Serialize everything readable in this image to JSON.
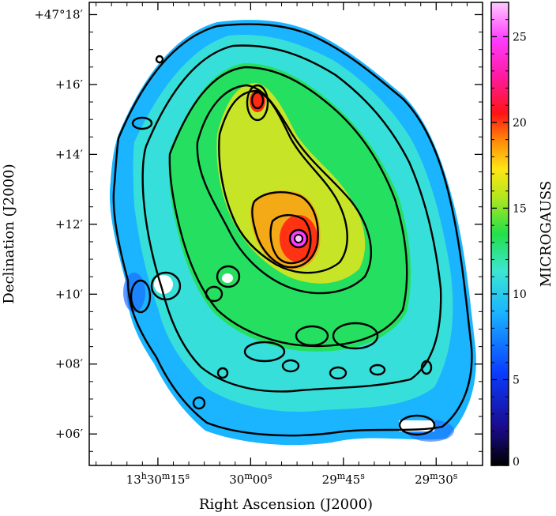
{
  "chart_data": {
    "type": "heatmap",
    "title": "",
    "xlabel": "Right Ascension (J2000)",
    "ylabel": "Declination (J2000)",
    "x_ticks": [
      {
        "main": "13",
        "sup1": "h",
        "mid": "30",
        "sup2": "m",
        "end": "15",
        "sup3": "s"
      },
      {
        "main": "",
        "sup1": "",
        "mid": "30",
        "sup2": "m",
        "end": "00",
        "sup3": "s"
      },
      {
        "main": "",
        "sup1": "",
        "mid": "29",
        "sup2": "m",
        "end": "45",
        "sup3": "s"
      },
      {
        "main": "",
        "sup1": "",
        "mid": "29",
        "sup2": "m",
        "end": "30",
        "sup3": "s"
      }
    ],
    "y_ticks": [
      {
        "label": "+47°18′",
        "value": 18
      },
      {
        "label": "+16′",
        "value": 16
      },
      {
        "label": "+14′",
        "value": 14
      },
      {
        "label": "+12′",
        "value": 12
      },
      {
        "label": "+10′",
        "value": 10
      },
      {
        "label": "+08′",
        "value": 8
      },
      {
        "label": "+06′",
        "value": 6
      }
    ],
    "colorbar": {
      "label": "MICROGAUSS",
      "min": 0,
      "max": 27,
      "ticks": [
        0,
        5,
        10,
        15,
        20,
        25
      ],
      "tick_labels": [
        "0",
        "5",
        "10",
        "15",
        "20",
        "25"
      ],
      "colormap": [
        "#000000",
        "#1a0a8a",
        "#0a3cff",
        "#1ab4ff",
        "#3ce6d2",
        "#22e04a",
        "#b4e61e",
        "#ffe614",
        "#ff8c0a",
        "#ff1414",
        "#ff1aa0",
        "#ff3cff",
        "#ffc8ff"
      ]
    },
    "field_values": {
      "outer_disk": 10,
      "mid_disk": 14,
      "arm": 16,
      "core_peak": 27,
      "companion_peak": 22,
      "edge_low": 8
    }
  }
}
